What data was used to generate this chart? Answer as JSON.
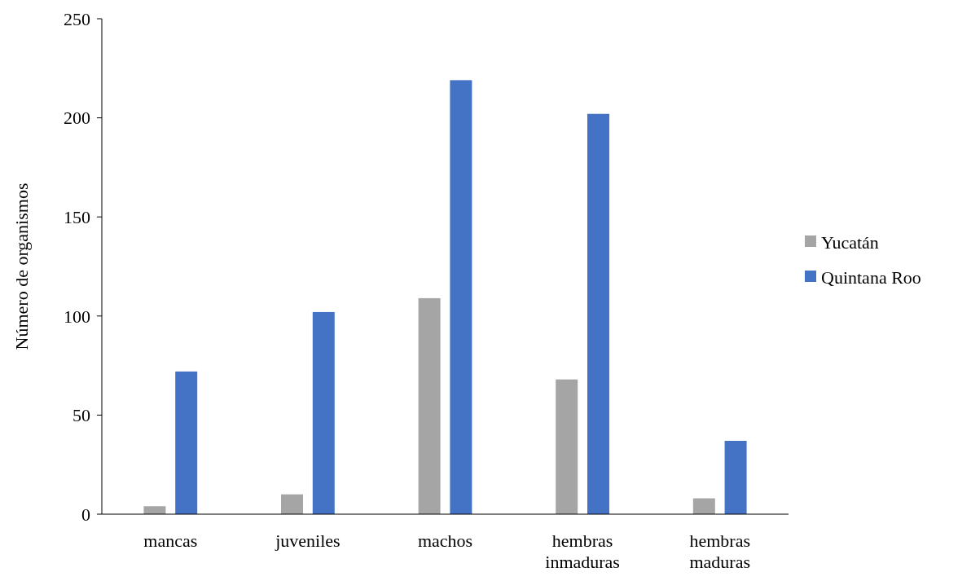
{
  "chart_data": {
    "type": "bar",
    "ylabel": "Número de organismos",
    "categories": [
      "mancas",
      "juveniles",
      "machos",
      "hembras inmaduras",
      "hembras maduras"
    ],
    "series": [
      {
        "name": "Yucatán",
        "color": "#a5a5a5",
        "values": [
          4,
          10,
          109,
          68,
          8
        ]
      },
      {
        "name": "Quintana Roo",
        "color": "#4472c4",
        "values": [
          72,
          102,
          219,
          202,
          37
        ]
      }
    ],
    "ylim": [
      0,
      250
    ],
    "yticks": [
      0,
      50,
      100,
      150,
      200,
      250
    ],
    "grid": false,
    "legend": "right"
  }
}
